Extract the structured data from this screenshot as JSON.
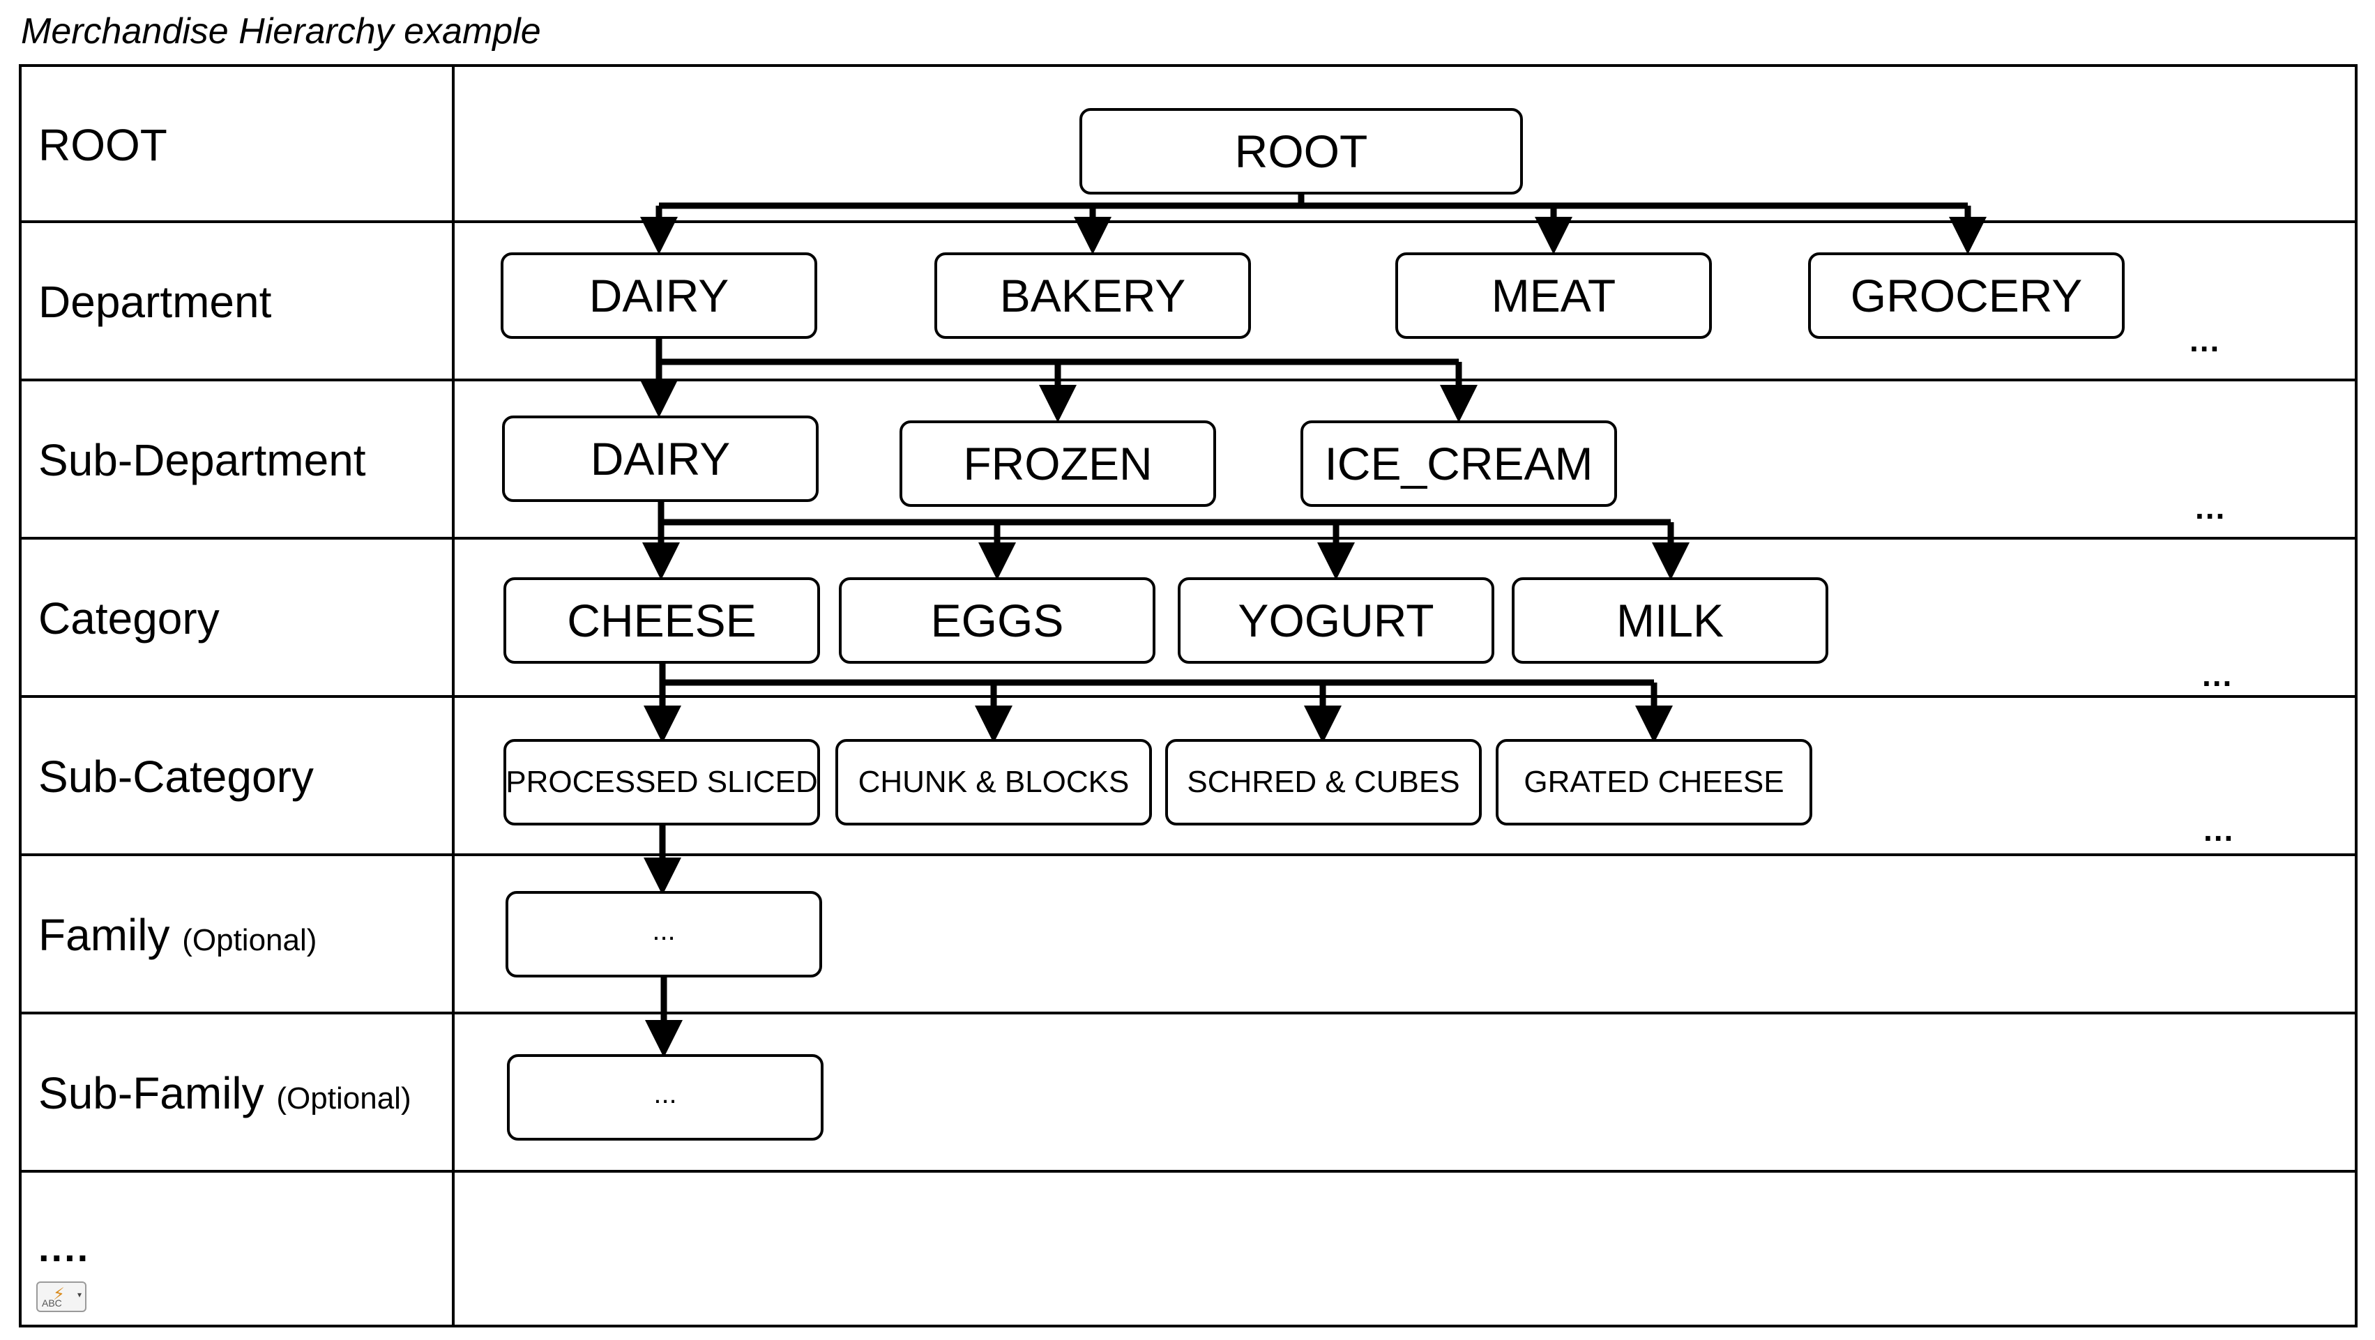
{
  "caption": "Merchandise Hierarchy example",
  "levels": [
    {
      "name": "ROOT",
      "optional": ""
    },
    {
      "name": "Department",
      "optional": ""
    },
    {
      "name": "Sub-Department",
      "optional": ""
    },
    {
      "name": "Category",
      "optional": ""
    },
    {
      "name": "Sub-Category",
      "optional": ""
    },
    {
      "name": "Family",
      "optional": "(Optional)"
    },
    {
      "name": "Sub-Family",
      "optional": "(Optional)"
    },
    {
      "name": "....",
      "optional": ""
    }
  ],
  "nodes": {
    "root": "ROOT",
    "departments": [
      "DAIRY",
      "BAKERY",
      "MEAT",
      "GROCERY"
    ],
    "sub_departments": [
      "DAIRY",
      "FROZEN",
      "ICE_CREAM"
    ],
    "categories": [
      "CHEESE",
      "EGGS",
      "YOGURT",
      "MILK"
    ],
    "sub_categories": [
      "PROCESSED SLICED",
      "CHUNK & BLOCKS",
      "SCHRED & CUBES",
      "GRATED CHEESE"
    ],
    "family": "...",
    "sub_family": "..."
  },
  "continuation_marker": "...",
  "icons": {
    "spell_check": "spell-check-icon"
  }
}
